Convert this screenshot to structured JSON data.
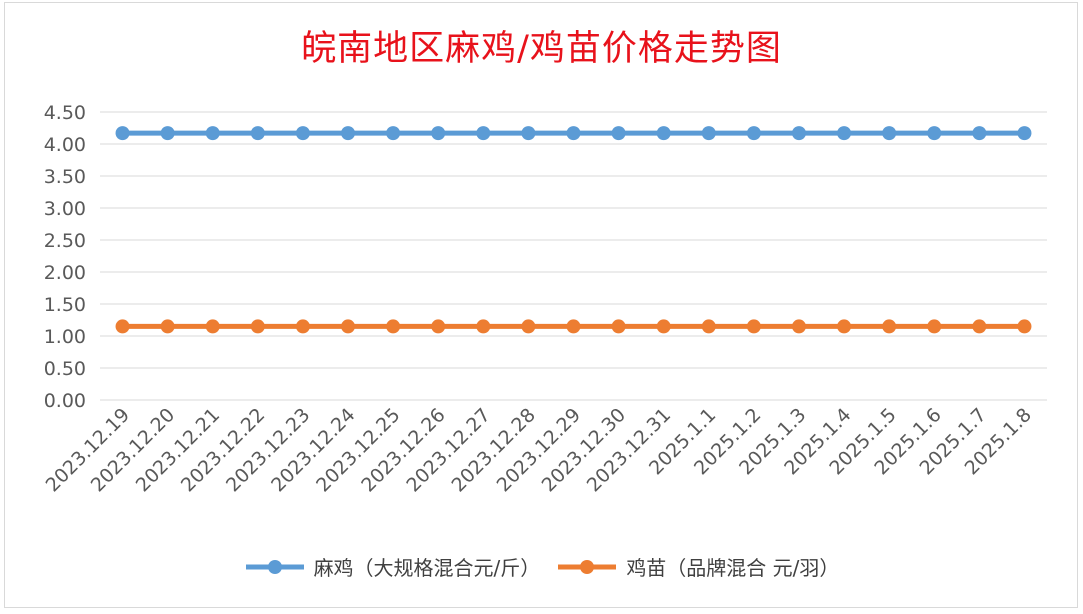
{
  "chart_data": {
    "type": "line",
    "title": "皖南地区麻鸡/鸡苗价格走势图",
    "categories": [
      "2023.12.19",
      "2023.12.20",
      "2023.12.21",
      "2023.12.22",
      "2023.12.23",
      "2023.12.24",
      "2023.12.25",
      "2023.12.26",
      "2023.12.27",
      "2023.12.28",
      "2023.12.29",
      "2023.12.30",
      "2023.12.31",
      "2025.1.1",
      "2025.1.2",
      "2025.1.3",
      "2025.1.4",
      "2025.1.5",
      "2025.1.6",
      "2025.1.7",
      "2025.1.8"
    ],
    "series": [
      {
        "name": "麻鸡（大规格混合元/斤）",
        "color": "#5b9bd5",
        "values": [
          4.17,
          4.17,
          4.17,
          4.17,
          4.17,
          4.17,
          4.17,
          4.17,
          4.17,
          4.17,
          4.17,
          4.17,
          4.17,
          4.17,
          4.17,
          4.17,
          4.17,
          4.17,
          4.17,
          4.17,
          4.17
        ]
      },
      {
        "name": "鸡苗（品牌混合 元/羽）",
        "color": "#ed7d31",
        "values": [
          1.15,
          1.15,
          1.15,
          1.15,
          1.15,
          1.15,
          1.15,
          1.15,
          1.15,
          1.15,
          1.15,
          1.15,
          1.15,
          1.15,
          1.15,
          1.15,
          1.15,
          1.15,
          1.15,
          1.15,
          1.15
        ]
      }
    ],
    "yticks": [
      "0.00",
      "0.50",
      "1.00",
      "1.50",
      "2.00",
      "2.50",
      "3.00",
      "3.50",
      "4.00",
      "4.50"
    ],
    "ylim": [
      0,
      4.5
    ],
    "grid": true,
    "legend_position": "bottom"
  }
}
